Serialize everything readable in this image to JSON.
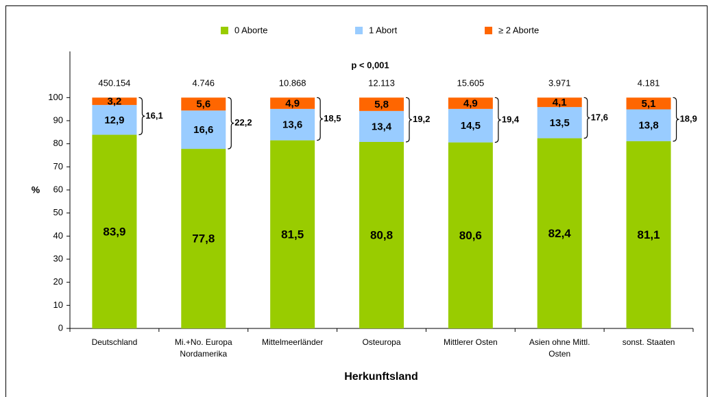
{
  "chart_data": {
    "type": "stacked_bar",
    "x_label": "Herkunftsland",
    "y_label": "%",
    "annotation": "p < 0,001",
    "categories": [
      [
        "Deutschland"
      ],
      [
        "Mi.+No. Europa",
        "Nordamerika"
      ],
      [
        "Mittelmeerländer"
      ],
      [
        "Osteuropa"
      ],
      [
        "Mittlerer Osten"
      ],
      [
        "Asien ohne Mittl.",
        "Osten"
      ],
      [
        "sonst. Staaten"
      ]
    ],
    "series": [
      {
        "name": "0 Aborte",
        "color": "#99cc00",
        "values": [
          83.9,
          77.8,
          81.5,
          80.8,
          80.6,
          82.4,
          81.1
        ],
        "value_labels": [
          "83,9",
          "77,8",
          "81,5",
          "80,8",
          "80,6",
          "82,4",
          "81,1"
        ]
      },
      {
        "name": "1 Abort",
        "color": "#99ccff",
        "values": [
          12.9,
          16.6,
          13.6,
          13.4,
          14.5,
          13.5,
          13.8
        ],
        "value_labels": [
          "12,9",
          "16,6",
          "13,6",
          "13,4",
          "14,5",
          "13,5",
          "13,8"
        ]
      },
      {
        "name": "≥ 2 Aborte",
        "color": "#ff6600",
        "values": [
          3.2,
          5.6,
          4.9,
          5.8,
          4.9,
          4.1,
          5.1
        ],
        "value_labels": [
          "3,2",
          "5,6",
          "4,9",
          "5,8",
          "4,9",
          "4,1",
          "5,1"
        ]
      }
    ],
    "bracket_values": [
      16.1,
      22.2,
      18.5,
      19.2,
      19.4,
      17.6,
      18.9
    ],
    "bracket_labels": [
      "16,1",
      "22,2",
      "18,5",
      "19,2",
      "19,4",
      "17,6",
      "18,9"
    ],
    "n_values": [
      450154,
      4746,
      10868,
      12113,
      15605,
      3971,
      4181
    ],
    "n_labels": [
      "450.154",
      "4.746",
      "10.868",
      "12.113",
      "15.605",
      "3.971",
      "4.181"
    ],
    "ylim": [
      0,
      120
    ],
    "yticks": [
      0,
      10,
      20,
      30,
      40,
      50,
      60,
      70,
      80,
      90,
      100
    ]
  }
}
